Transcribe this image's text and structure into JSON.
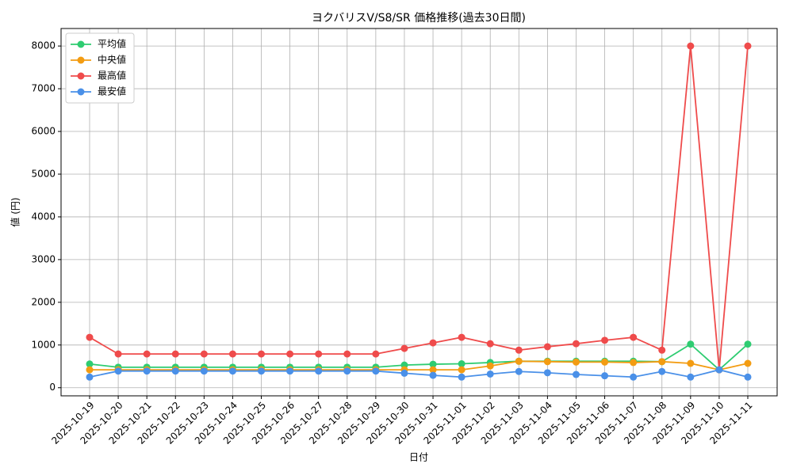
{
  "chart_data": {
    "type": "line",
    "title": "ヨクバリスV/S8/SR 価格推移(過去30日間)",
    "x_label": "日付",
    "y_label": "値 (円)",
    "categories": [
      "2025-10-19",
      "2025-10-20",
      "2025-10-21",
      "2025-10-22",
      "2025-10-23",
      "2025-10-24",
      "2025-10-25",
      "2025-10-26",
      "2025-10-27",
      "2025-10-28",
      "2025-10-29",
      "2025-10-30",
      "2025-10-31",
      "2025-11-01",
      "2025-11-02",
      "2025-11-03",
      "2025-11-04",
      "2025-11-05",
      "2025-11-06",
      "2025-11-07",
      "2025-11-08",
      "2025-11-09",
      "2025-11-10",
      "2025-11-11"
    ],
    "series": [
      {
        "name": "平均値",
        "color": "#2ecc71",
        "values": [
          555,
          480,
          480,
          480,
          480,
          480,
          480,
          480,
          480,
          480,
          480,
          530,
          550,
          560,
          590,
          620,
          620,
          620,
          620,
          620,
          610,
          1020,
          420,
          1020
        ]
      },
      {
        "name": "中央値",
        "color": "#f39c12",
        "values": [
          420,
          420,
          420,
          420,
          420,
          420,
          420,
          420,
          420,
          420,
          420,
          420,
          420,
          420,
          510,
          620,
          610,
          600,
          600,
          590,
          610,
          570,
          420,
          570
        ]
      },
      {
        "name": "最高値",
        "color": "#ef4b4b",
        "values": [
          1180,
          790,
          790,
          790,
          790,
          790,
          790,
          790,
          790,
          790,
          790,
          920,
          1050,
          1180,
          1030,
          880,
          960,
          1030,
          1110,
          1180,
          880,
          8000,
          420,
          8000
        ]
      },
      {
        "name": "最安値",
        "color": "#4a90e8",
        "values": [
          250,
          390,
          390,
          390,
          390,
          390,
          390,
          390,
          390,
          390,
          390,
          340,
          290,
          250,
          320,
          380,
          350,
          310,
          280,
          250,
          380,
          250,
          420,
          250
        ]
      }
    ],
    "ylim": [
      -190,
      8410
    ],
    "yticks": [
      0,
      1000,
      2000,
      3000,
      4000,
      5000,
      6000,
      7000,
      8000
    ],
    "grid": true,
    "legend": "upper-left"
  }
}
